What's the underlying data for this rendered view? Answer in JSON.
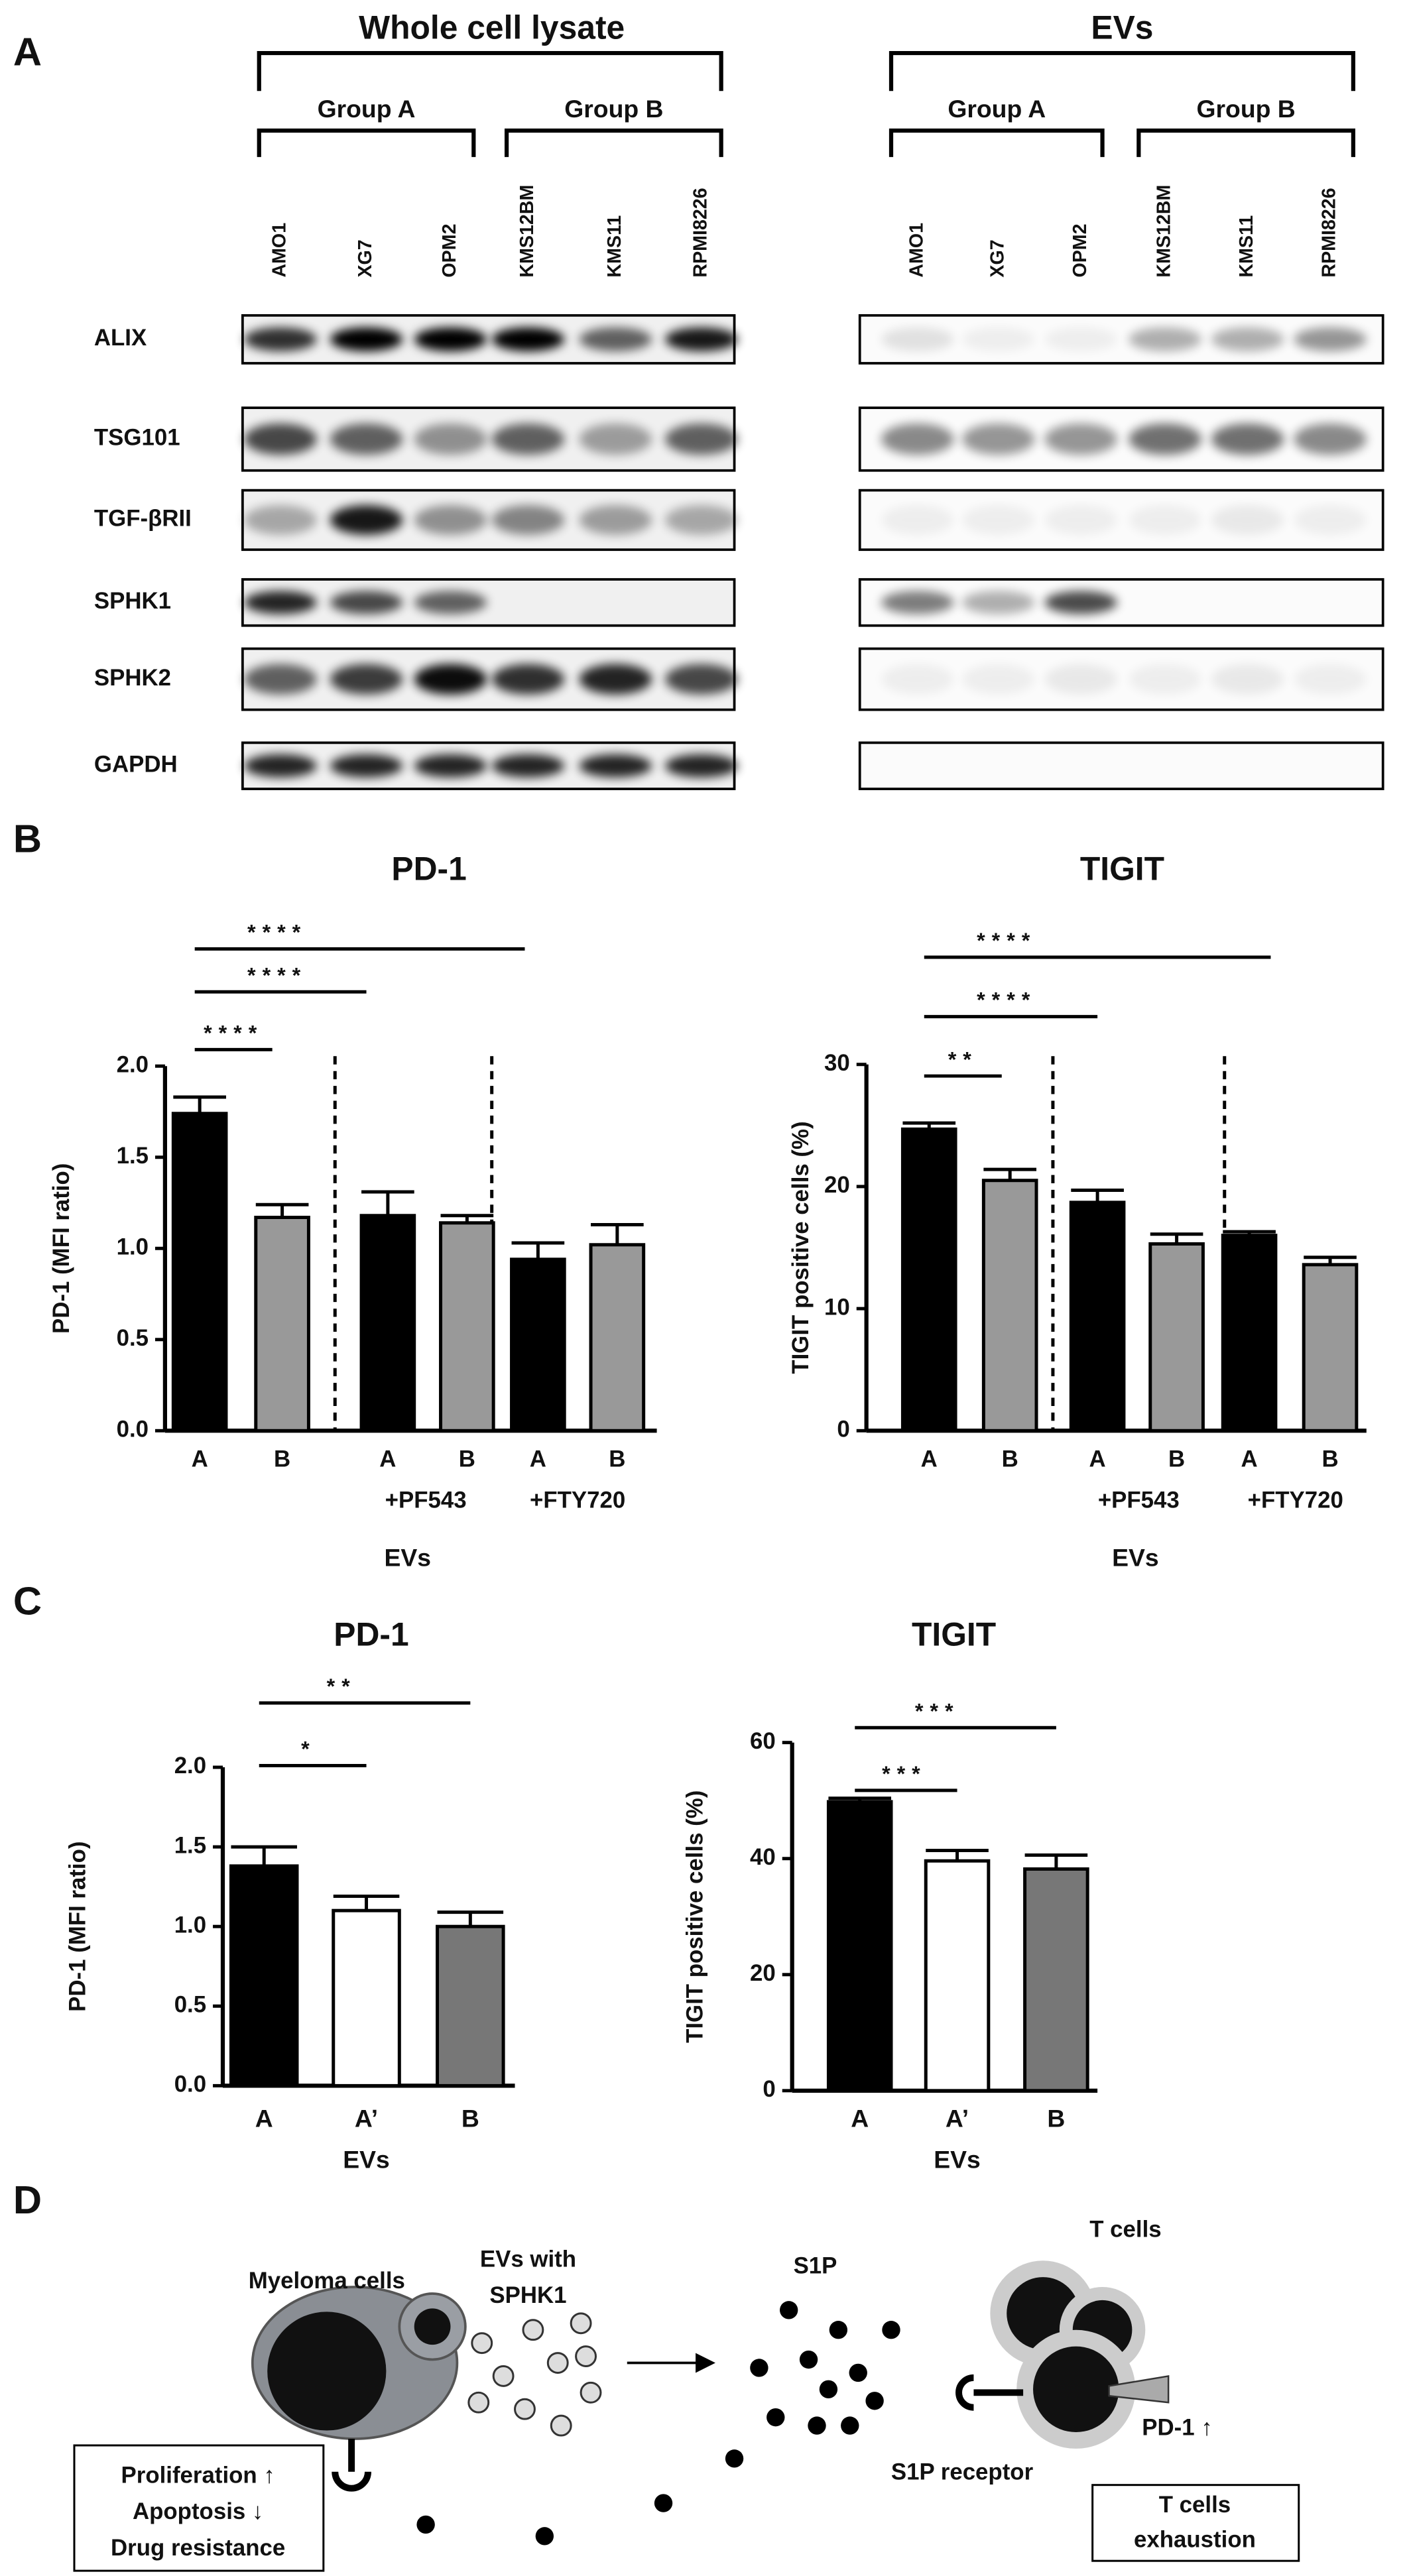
{
  "panel_labels": [
    "A",
    "B",
    "C",
    "D"
  ],
  "blot": {
    "sections": [
      {
        "title": "Whole cell lysate",
        "groups": [
          "Group A",
          "Group B"
        ],
        "lanes": [
          "AMO1",
          "XG7",
          "OPM2",
          "KMS12BM",
          "KMS11",
          "RPMI8226"
        ]
      },
      {
        "title": "EVs",
        "groups": [
          "Group A",
          "Group B"
        ],
        "lanes": [
          "AMO1",
          "XG7",
          "OPM2",
          "KMS12BM",
          "KMS11",
          "RPMI8226"
        ]
      }
    ],
    "proteins": [
      "ALIX",
      "TSG101",
      "TGF-βRII",
      "SPHK1",
      "SPHK2",
      "GAPDH"
    ]
  },
  "chart_data": [
    {
      "type": "bar",
      "title": "PD-1",
      "categories": [
        "A",
        "B",
        "A",
        "B",
        "A",
        "B"
      ],
      "group_labels": [
        null,
        "+PF543",
        "+FTY720"
      ],
      "x_label": "EVs",
      "y_label": "PD-1 (MFI ratio)",
      "values": [
        1.74,
        1.17,
        1.18,
        1.14,
        0.94,
        1.02
      ],
      "errors": [
        0.09,
        0.07,
        0.13,
        0.04,
        0.09,
        0.11
      ],
      "colors": [
        "#000000",
        "#999999",
        "#000000",
        "#999999",
        "#000000",
        "#999999"
      ],
      "ylim": [
        0,
        2
      ],
      "yticks": [
        {
          "value": 0,
          "label": "0.0"
        },
        0.5,
        {
          "value": 1,
          "label": "1.0"
        },
        1.5,
        {
          "value": 2,
          "label": "2.0"
        }
      ],
      "significance": [
        {
          "label": "****",
          "pair": [
            0,
            1
          ]
        },
        {
          "label": "****",
          "pair": [
            0,
            2
          ]
        },
        {
          "label": "****",
          "pair": [
            0,
            4
          ]
        }
      ]
    },
    {
      "type": "bar",
      "title": "TIGIT",
      "categories": [
        "A",
        "B",
        "A",
        "B",
        "A",
        "B"
      ],
      "group_labels": [
        null,
        "+PF543",
        "+FTY720"
      ],
      "x_label": "EVs",
      "y_label": "TIGIT positive cells (%)",
      "values": [
        24.7,
        20.5,
        18.7,
        15.3,
        16.0,
        13.6
      ],
      "errors": [
        0.5,
        0.9,
        1.0,
        0.8,
        0.3,
        0.6
      ],
      "colors": [
        "#000000",
        "#999999",
        "#000000",
        "#999999",
        "#000000",
        "#999999"
      ],
      "ylim": [
        0,
        30
      ],
      "yticks": [
        0,
        10,
        20,
        30
      ],
      "significance": [
        {
          "label": "**",
          "pair": [
            0,
            1
          ]
        },
        {
          "label": "****",
          "pair": [
            0,
            2
          ]
        },
        {
          "label": "****",
          "pair": [
            0,
            4
          ]
        }
      ]
    },
    {
      "type": "bar",
      "title": "PD-1",
      "categories": [
        "A",
        "A’",
        "B"
      ],
      "x_label": "EVs",
      "y_label": "PD-1 (MFI ratio)",
      "values": [
        1.38,
        1.1,
        1.0
      ],
      "errors": [
        0.12,
        0.09,
        0.09
      ],
      "colors": [
        "#000000",
        "#ffffff",
        "#777777"
      ],
      "ylim": [
        0,
        2
      ],
      "yticks": [
        {
          "value": 0,
          "label": "0.0"
        },
        0.5,
        {
          "value": 1,
          "label": "1.0"
        },
        1.5,
        {
          "value": 2,
          "label": "2.0"
        }
      ],
      "significance": [
        {
          "label": "*",
          "pair": [
            0,
            1
          ]
        },
        {
          "label": "**",
          "pair": [
            0,
            2
          ]
        }
      ]
    },
    {
      "type": "bar",
      "title": "TIGIT",
      "categories": [
        "A",
        "A’",
        "B"
      ],
      "x_label": "EVs",
      "y_label": "TIGIT positive cells (%)",
      "values": [
        49.8,
        39.6,
        38.2
      ],
      "errors": [
        0.6,
        1.8,
        2.4
      ],
      "colors": [
        "#000000",
        "#ffffff",
        "#777777"
      ],
      "ylim": [
        0,
        60
      ],
      "yticks": [
        0,
        20,
        40,
        60
      ],
      "significance": [
        {
          "label": "***",
          "pair": [
            0,
            1
          ]
        },
        {
          "label": "***",
          "pair": [
            0,
            2
          ]
        }
      ]
    }
  ],
  "diagram": {
    "myeloma": "Myeloma cells",
    "evs": [
      "EVs with",
      "SPHK1"
    ],
    "s1p": "S1P",
    "t_cells": "T cells",
    "pd1": "PD-1 ↑",
    "receptor": "S1P receptor",
    "effects": [
      "Proliferation ↑",
      "Apoptosis ↓",
      "Drug resistance"
    ],
    "exhaustion": [
      "T cells",
      "exhaustion"
    ]
  }
}
